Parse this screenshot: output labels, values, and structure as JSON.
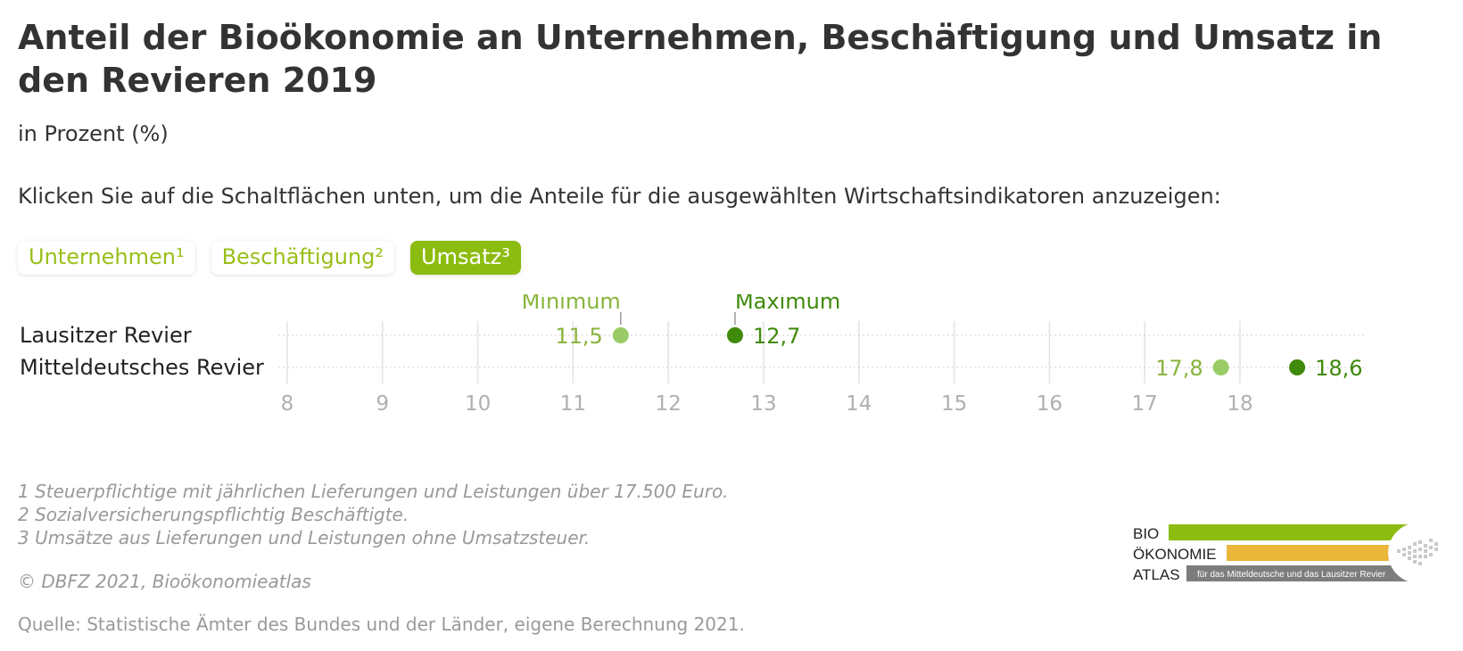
{
  "title": "Anteil der Bioökonomie an Unternehmen, Beschäftigung und Umsatz in den Revieren 2019",
  "subtitle": "in Prozent (%)",
  "instruction": "Klicken Sie auf die Schaltflächen unten, um die Anteile für die ausgewählten Wirtschaftsindikatoren anzuzeigen:",
  "buttons": [
    {
      "label": "Unternehmen¹",
      "active": false
    },
    {
      "label": "Beschäftigung²",
      "active": false
    },
    {
      "label": "Umsatz³",
      "active": true
    }
  ],
  "chart_data": {
    "type": "dumbbell",
    "categories": [
      "Lausitzer Revier",
      "Mitteldeutsches Revier"
    ],
    "series": [
      {
        "name": "Minimum",
        "values": [
          11.5,
          17.8
        ]
      },
      {
        "name": "Maximum",
        "values": [
          12.7,
          18.6
        ]
      }
    ],
    "value_labels": {
      "min": [
        "11,5",
        "17,8"
      ],
      "max": [
        "12,7",
        "18,6"
      ]
    },
    "xlim": [
      8,
      19
    ],
    "xticks": [
      8,
      9,
      10,
      11,
      12,
      13,
      14,
      15,
      16,
      17,
      18
    ],
    "grid": true,
    "annotations": [
      {
        "text": "Minimum",
        "row": 0,
        "series": "min"
      },
      {
        "text": "Maximum",
        "row": 0,
        "series": "max"
      }
    ],
    "colors": {
      "min": "#99cc66",
      "max": "#3f8a0a",
      "label_min": "#88b43c",
      "label_max": "#3f8a0a",
      "axis": "#b0b0b0"
    }
  },
  "footnotes": [
    "1 Steuerpflichtige mit jährlichen Lieferungen und Leistungen über 17.500 Euro.",
    "2 Sozialversicherungspflichtig Beschäftigte.",
    "3 Umsätze aus Lieferungen und Leistungen ohne Umsatzsteuer."
  ],
  "copyright": "© DBFZ 2021, Bioökonomieatlas",
  "source": "Quelle: Statistische Ämter des Bundes und der Länder, eigene Berechnung 2021.",
  "logo": {
    "words": [
      "BIO",
      "ÖKONOMIE",
      "ATLAS"
    ],
    "tagline": "für das Mitteldeutsche und das Lausitzer Revier",
    "colors": {
      "green": "#8cbc0f",
      "yellow": "#eab73b",
      "gray": "#7d7d7d"
    }
  }
}
